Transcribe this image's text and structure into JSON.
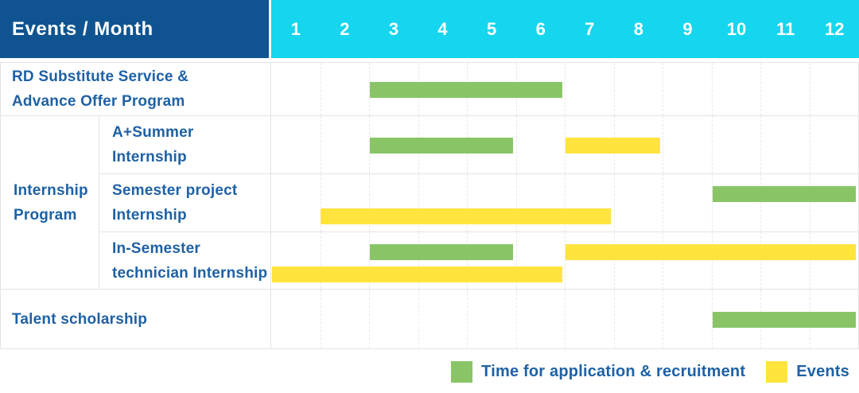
{
  "header": {
    "title": "Events / Month"
  },
  "colors": {
    "header_bg": "#0f5490",
    "months_bg": "#15d6ee",
    "bar_green": "#89c566",
    "bar_yellow": "#ffe43d",
    "label_text": "#1e61a5",
    "grid_line": "#e3e3e3"
  },
  "chart_data": {
    "type": "table",
    "subtype": "gantt",
    "title": "Events / Month",
    "months": [
      "1",
      "2",
      "3",
      "4",
      "5",
      "6",
      "7",
      "8",
      "9",
      "10",
      "11",
      "12"
    ],
    "group_label_lines": [
      "Internship",
      "Program"
    ],
    "rows": [
      {
        "group": "",
        "label": "RD Substitute Service & Advance Offer Program",
        "label_lines": [
          "RD Substitute Service &",
          "Advance Offer Program"
        ],
        "bars": [
          {
            "series": "Time for application & recruitment",
            "color": "green",
            "start": 3,
            "end": 6,
            "lane": "center"
          }
        ]
      },
      {
        "group": "Internship Program",
        "label": "A+Summer Internship",
        "label_lines": [
          "A+Summer",
          "Internship"
        ],
        "bars": [
          {
            "series": "Time for application & recruitment",
            "color": "green",
            "start": 3,
            "end": 5,
            "lane": "center"
          },
          {
            "series": "Events",
            "color": "yellow",
            "start": 7,
            "end": 8,
            "lane": "center"
          }
        ]
      },
      {
        "group": "Internship Program",
        "label": "Semester project Internship",
        "label_lines": [
          "Semester project",
          "Internship"
        ],
        "bars": [
          {
            "series": "Time for application & recruitment",
            "color": "green",
            "start": 10,
            "end": 12,
            "lane": "top"
          },
          {
            "series": "Events",
            "color": "yellow",
            "start": 2,
            "end": 7,
            "lane": "bottom"
          }
        ]
      },
      {
        "group": "Internship Program",
        "label": "In-Semester technician Internship",
        "label_lines": [
          "In-Semester",
          "technician Internship"
        ],
        "bars": [
          {
            "series": "Time for application & recruitment",
            "color": "green",
            "start": 3,
            "end": 5,
            "lane": "top"
          },
          {
            "series": "Events",
            "color": "yellow",
            "start": 7,
            "end": 12,
            "lane": "top"
          },
          {
            "series": "Events",
            "color": "yellow",
            "start": 1,
            "end": 6,
            "lane": "bottom"
          }
        ]
      },
      {
        "group": "",
        "label": "Talent scholarship",
        "label_lines": [
          "Talent scholarship"
        ],
        "bars": [
          {
            "series": "Time for application & recruitment",
            "color": "green",
            "start": 10,
            "end": 12,
            "lane": "center"
          }
        ]
      }
    ],
    "legend": [
      {
        "label": "Time for application & recruitment",
        "color": "green"
      },
      {
        "label": "Events",
        "color": "yellow"
      }
    ],
    "legend_position": "bottom-right",
    "x_range": [
      1,
      12
    ],
    "grid": true
  }
}
